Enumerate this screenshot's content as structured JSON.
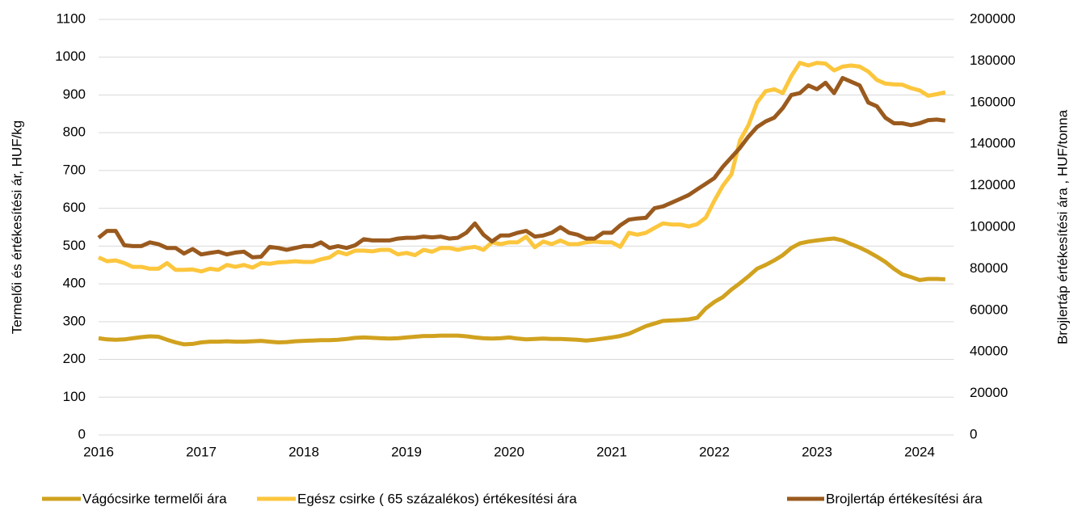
{
  "chart_data": {
    "type": "line",
    "y_label": "Termelői és értékesítési ár, HUF/kg",
    "y2_label": "Brojlertáp értékesítési ára , HUF/tonna",
    "categories": [
      "2016",
      null,
      null,
      null,
      null,
      null,
      null,
      null,
      null,
      null,
      null,
      null,
      "2017",
      null,
      null,
      null,
      null,
      null,
      null,
      null,
      null,
      null,
      null,
      null,
      "2018",
      null,
      null,
      null,
      null,
      null,
      null,
      null,
      null,
      null,
      null,
      null,
      "2019",
      null,
      null,
      null,
      null,
      null,
      null,
      null,
      null,
      null,
      null,
      null,
      "2020",
      null,
      null,
      null,
      null,
      null,
      null,
      null,
      null,
      null,
      null,
      null,
      "2021",
      null,
      null,
      null,
      null,
      null,
      null,
      null,
      null,
      null,
      null,
      null,
      "2022",
      null,
      null,
      null,
      null,
      null,
      null,
      null,
      null,
      null,
      null,
      null,
      "2023",
      null,
      null,
      null,
      null,
      null,
      null,
      null,
      null,
      null,
      null,
      null,
      "2024",
      null,
      null,
      null
    ],
    "ylim": [
      0,
      1100
    ],
    "yticks": [
      0,
      100,
      200,
      300,
      400,
      500,
      600,
      700,
      800,
      900,
      1000,
      1100
    ],
    "y2lim": [
      0,
      200000
    ],
    "y2ticks": [
      0,
      20000,
      40000,
      60000,
      80000,
      100000,
      120000,
      140000,
      160000,
      180000,
      200000
    ],
    "grid": true,
    "legend": "bottom",
    "series": [
      {
        "name": "Vágócsirke termelői ára",
        "color": "#d1a21f",
        "values": [
          256,
          253,
          252,
          253,
          256,
          259,
          261,
          260,
          252,
          245,
          240,
          241,
          245,
          247,
          247,
          248,
          247,
          247,
          248,
          249,
          247,
          245,
          246,
          248,
          249,
          250,
          251,
          251,
          252,
          254,
          257,
          258,
          257,
          256,
          255,
          256,
          258,
          260,
          262,
          262,
          263,
          263,
          263,
          261,
          258,
          256,
          255,
          256,
          258,
          255,
          253,
          254,
          255,
          254,
          254,
          253,
          252,
          250,
          252,
          255,
          258,
          262,
          268,
          278,
          288,
          295,
          302,
          303,
          304,
          306,
          310,
          335,
          352,
          365,
          385,
          402,
          420,
          440,
          450,
          462,
          476,
          495,
          507,
          512,
          515,
          518,
          520,
          515,
          505,
          496,
          485,
          472,
          458,
          440,
          425,
          418,
          410,
          413,
          413,
          412
        ]
      },
      {
        "name": "Egész csirke ( 65 százalékos) értékesítési ára",
        "color": "#fcc63d",
        "values": [
          470,
          460,
          462,
          455,
          445,
          445,
          440,
          440,
          455,
          437,
          437,
          438,
          433,
          440,
          437,
          450,
          445,
          450,
          443,
          455,
          453,
          457,
          458,
          460,
          458,
          458,
          465,
          470,
          485,
          478,
          488,
          488,
          486,
          490,
          490,
          478,
          482,
          476,
          490,
          485,
          495,
          495,
          490,
          495,
          498,
          490,
          510,
          505,
          510,
          510,
          525,
          497,
          512,
          505,
          515,
          505,
          505,
          510,
          512,
          510,
          510,
          498,
          535,
          530,
          535,
          548,
          560,
          557,
          557,
          552,
          558,
          575,
          620,
          660,
          690,
          780,
          820,
          880,
          910,
          915,
          905,
          950,
          985,
          978,
          985,
          983,
          965,
          975,
          978,
          975,
          962,
          940,
          930,
          928,
          927,
          918,
          912,
          898,
          902,
          907
        ]
      },
      {
        "name": "Brojlertáp értékesítési ára",
        "color": "#9a5a1e",
        "axis": "y2",
        "values": [
          94900,
          98200,
          98200,
          91300,
          90900,
          90900,
          92700,
          91800,
          90000,
          90000,
          87300,
          89500,
          86900,
          87600,
          88200,
          86900,
          87800,
          88200,
          85500,
          85800,
          90500,
          90000,
          89100,
          90000,
          90900,
          90900,
          92700,
          90000,
          90900,
          90000,
          91300,
          94200,
          93600,
          93600,
          93600,
          94500,
          94900,
          94900,
          95500,
          95100,
          95500,
          94500,
          94900,
          97300,
          101800,
          96400,
          93100,
          96000,
          96000,
          97300,
          98200,
          95500,
          96000,
          97300,
          100000,
          97300,
          96400,
          94500,
          94500,
          97300,
          97300,
          100900,
          103600,
          104200,
          104500,
          109100,
          110000,
          111800,
          113600,
          115500,
          118200,
          120900,
          123600,
          129100,
          133600,
          138200,
          143600,
          148200,
          150900,
          152700,
          157300,
          163600,
          164500,
          168200,
          166400,
          169500,
          164500,
          171800,
          170000,
          168200,
          160000,
          158200,
          152700,
          150000,
          150000,
          149100,
          150000,
          151500,
          151800,
          151300
        ]
      }
    ]
  }
}
